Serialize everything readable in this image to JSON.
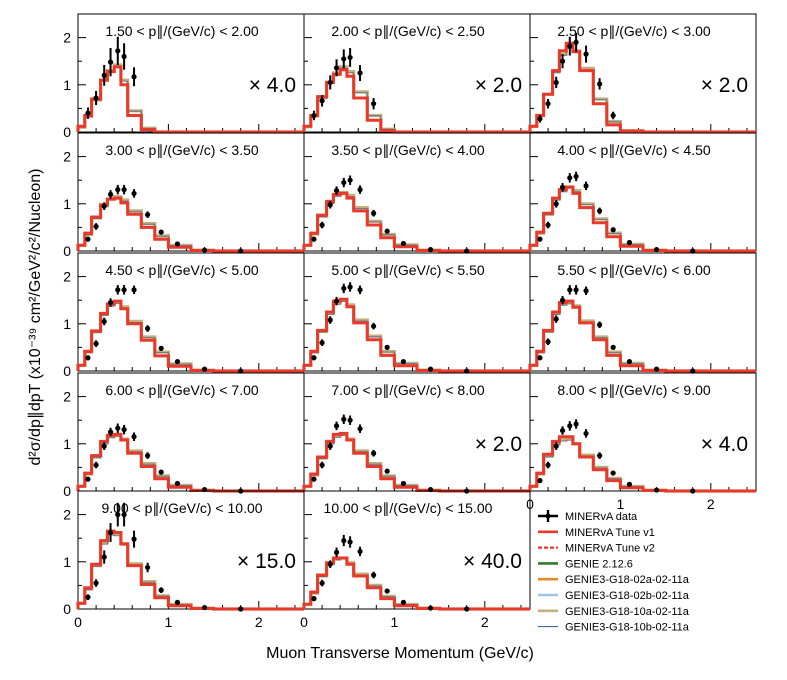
{
  "chart_data": {
    "type": "line",
    "xlabel": "Muon Transverse Momentum (GeV/c)",
    "ylabel": "d²σ/dp∥dpT (x10⁻³⁹ cm²/GeV²/c²/Nucleon)",
    "xlim": [
      0,
      2.5
    ],
    "ylim": [
      0,
      2.5
    ],
    "x_ticks": [
      "0",
      "1",
      "2"
    ],
    "y_ticks": [
      "0",
      "1",
      "2"
    ],
    "grid": false,
    "legend_position": "bottom-right",
    "legend": [
      {
        "label": "MINERvA data",
        "color": "#000000",
        "style": "data"
      },
      {
        "label": "MINERvA Tune v1",
        "color": "#e8392b",
        "style": "solid"
      },
      {
        "label": "MINERvA Tune v2",
        "color": "#e8392b",
        "style": "dashed"
      },
      {
        "label": "GENIE 2.12.6",
        "color": "#2e7d32",
        "style": "solid"
      },
      {
        "label": "GENIE3-G18-02a-02-11a",
        "color": "#e8892b",
        "style": "solid"
      },
      {
        "label": "GENIE3-G18-02b-02-11a",
        "color": "#9ec3e6",
        "style": "solid"
      },
      {
        "label": "GENIE3-G18-10a-02-11a",
        "color": "#c4b07a",
        "style": "solid"
      },
      {
        "label": "GENIE3-G18-10b-02-11a",
        "color": "#2b4f9e",
        "style": "solid"
      }
    ],
    "bins": [
      0,
      0.075,
      0.15,
      0.25,
      0.325,
      0.4,
      0.475,
      0.55,
      0.7,
      0.85,
      1.0,
      1.25,
      1.5,
      2.5
    ],
    "panels": [
      {
        "title": "1.50 < p∥/(GeV/c) < 2.00",
        "scale": "× 4.0",
        "data_x": [
          0.11,
          0.2,
          0.29,
          0.36,
          0.44,
          0.51,
          0.62
        ],
        "data_y": [
          0.4,
          0.72,
          1.2,
          1.48,
          1.72,
          1.6,
          1.17
        ],
        "data_err": [
          0.12,
          0.15,
          0.22,
          0.3,
          0.3,
          0.28,
          0.2
        ],
        "tune_v1": [
          0.12,
          0.35,
          0.7,
          1.1,
          1.28,
          1.38,
          1.0,
          0.35,
          0.05,
          0,
          0,
          0,
          0
        ],
        "genie": [
          0.1,
          0.33,
          0.68,
          1.1,
          1.3,
          1.42,
          1.1,
          0.45,
          0.08,
          0,
          0,
          0,
          0
        ]
      },
      {
        "title": "2.00 < p∥/(GeV/c) < 2.50",
        "scale": "× 2.0",
        "data_x": [
          0.11,
          0.2,
          0.29,
          0.36,
          0.44,
          0.51,
          0.62,
          0.77
        ],
        "data_y": [
          0.35,
          0.66,
          1.05,
          1.36,
          1.55,
          1.58,
          1.25,
          0.6
        ],
        "data_err": [
          0.1,
          0.12,
          0.15,
          0.18,
          0.2,
          0.2,
          0.17,
          0.12
        ],
        "tune_v1": [
          0.12,
          0.35,
          0.75,
          1.05,
          1.22,
          1.32,
          1.18,
          0.72,
          0.25,
          0.03,
          0,
          0,
          0
        ],
        "genie": [
          0.11,
          0.34,
          0.73,
          1.05,
          1.25,
          1.38,
          1.28,
          0.85,
          0.35,
          0.06,
          0,
          0,
          0
        ]
      },
      {
        "title": "2.50 < p∥/(GeV/c) < 3.00",
        "scale": "× 2.0",
        "data_x": [
          0.11,
          0.2,
          0.29,
          0.36,
          0.44,
          0.51,
          0.62,
          0.77,
          0.92
        ],
        "data_y": [
          0.28,
          0.6,
          1.05,
          1.5,
          1.82,
          1.9,
          1.65,
          1.02,
          0.35
        ],
        "data_err": [
          0.08,
          0.1,
          0.12,
          0.15,
          0.2,
          0.2,
          0.18,
          0.12,
          0.08
        ],
        "tune_v1": [
          0.12,
          0.35,
          0.8,
          1.3,
          1.72,
          1.88,
          1.7,
          1.3,
          0.6,
          0.15,
          0.02,
          0,
          0
        ],
        "genie": [
          0.12,
          0.35,
          0.8,
          1.28,
          1.65,
          1.8,
          1.72,
          1.35,
          0.7,
          0.22,
          0.03,
          0,
          0
        ]
      },
      {
        "title": "3.00 < p∥/(GeV/c) < 3.50",
        "scale": "",
        "data_x": [
          0.11,
          0.2,
          0.29,
          0.36,
          0.44,
          0.51,
          0.62,
          0.77,
          0.92,
          1.1,
          1.4,
          1.8
        ],
        "data_y": [
          0.25,
          0.52,
          0.95,
          1.2,
          1.3,
          1.3,
          1.22,
          0.77,
          0.4,
          0.15,
          0.02,
          0.0
        ],
        "data_err": [
          0.05,
          0.07,
          0.08,
          0.09,
          0.1,
          0.1,
          0.09,
          0.07,
          0.05,
          0.03,
          0.01,
          0.01
        ],
        "tune_v1": [
          0.12,
          0.38,
          0.72,
          0.98,
          1.1,
          1.12,
          1.02,
          0.78,
          0.5,
          0.25,
          0.08,
          0.01,
          0
        ],
        "genie": [
          0.12,
          0.35,
          0.7,
          0.96,
          1.1,
          1.15,
          1.08,
          0.85,
          0.58,
          0.32,
          0.12,
          0.02,
          0
        ]
      },
      {
        "title": "3.50 < p∥/(GeV/c) < 4.00",
        "scale": "",
        "data_x": [
          0.11,
          0.2,
          0.29,
          0.36,
          0.44,
          0.51,
          0.62,
          0.77,
          0.92,
          1.1,
          1.4,
          1.8
        ],
        "data_y": [
          0.25,
          0.55,
          0.98,
          1.28,
          1.45,
          1.5,
          1.3,
          0.8,
          0.42,
          0.16,
          0.03,
          0.0
        ],
        "data_err": [
          0.05,
          0.07,
          0.08,
          0.09,
          0.1,
          0.1,
          0.09,
          0.07,
          0.05,
          0.03,
          0.01,
          0.01
        ],
        "tune_v1": [
          0.12,
          0.38,
          0.76,
          1.05,
          1.2,
          1.22,
          1.12,
          0.85,
          0.55,
          0.28,
          0.09,
          0.01,
          0
        ],
        "genie": [
          0.12,
          0.36,
          0.74,
          1.03,
          1.18,
          1.24,
          1.18,
          0.92,
          0.63,
          0.35,
          0.13,
          0.02,
          0
        ]
      },
      {
        "title": "4.00 < p∥/(GeV/c) < 4.50",
        "scale": "",
        "data_x": [
          0.11,
          0.2,
          0.29,
          0.36,
          0.44,
          0.51,
          0.62,
          0.77,
          0.92,
          1.1,
          1.4,
          1.8
        ],
        "data_y": [
          0.25,
          0.55,
          1.0,
          1.35,
          1.55,
          1.58,
          1.38,
          0.85,
          0.45,
          0.18,
          0.03,
          0.0
        ],
        "data_err": [
          0.05,
          0.07,
          0.08,
          0.09,
          0.1,
          0.1,
          0.09,
          0.07,
          0.05,
          0.03,
          0.01,
          0.01
        ],
        "tune_v1": [
          0.12,
          0.4,
          0.8,
          1.12,
          1.3,
          1.35,
          1.22,
          0.92,
          0.6,
          0.3,
          0.1,
          0.01,
          0
        ],
        "genie": [
          0.12,
          0.38,
          0.78,
          1.1,
          1.28,
          1.36,
          1.28,
          1.0,
          0.68,
          0.38,
          0.14,
          0.02,
          0
        ]
      },
      {
        "title": "4.50 < p∥/(GeV/c) < 5.00",
        "scale": "",
        "data_x": [
          0.11,
          0.2,
          0.29,
          0.36,
          0.44,
          0.51,
          0.62,
          0.77,
          0.92,
          1.1,
          1.4,
          1.8
        ],
        "data_y": [
          0.28,
          0.58,
          1.05,
          1.45,
          1.72,
          1.72,
          1.72,
          0.9,
          0.48,
          0.2,
          0.04,
          0.0
        ],
        "data_err": [
          0.05,
          0.07,
          0.08,
          0.09,
          0.1,
          0.1,
          0.09,
          0.07,
          0.05,
          0.03,
          0.01,
          0.01
        ],
        "tune_v1": [
          0.12,
          0.42,
          0.85,
          1.22,
          1.42,
          1.48,
          1.32,
          1.0,
          0.65,
          0.32,
          0.1,
          0.01,
          0
        ],
        "genie": [
          0.12,
          0.4,
          0.83,
          1.2,
          1.4,
          1.46,
          1.36,
          1.05,
          0.72,
          0.4,
          0.15,
          0.02,
          0
        ]
      },
      {
        "title": "5.00 < p∥/(GeV/c) < 5.50",
        "scale": "",
        "data_x": [
          0.11,
          0.2,
          0.29,
          0.36,
          0.44,
          0.51,
          0.62,
          0.77,
          0.92,
          1.1,
          1.4,
          1.8
        ],
        "data_y": [
          0.28,
          0.6,
          1.08,
          1.48,
          1.75,
          1.78,
          1.72,
          0.95,
          0.5,
          0.2,
          0.04,
          0.0
        ],
        "data_err": [
          0.05,
          0.07,
          0.08,
          0.09,
          0.1,
          0.1,
          0.09,
          0.07,
          0.05,
          0.03,
          0.01,
          0.01
        ],
        "tune_v1": [
          0.12,
          0.42,
          0.86,
          1.25,
          1.48,
          1.52,
          1.36,
          1.02,
          0.66,
          0.33,
          0.11,
          0.01,
          0
        ],
        "genie": [
          0.12,
          0.4,
          0.84,
          1.22,
          1.44,
          1.5,
          1.4,
          1.08,
          0.74,
          0.41,
          0.16,
          0.02,
          0
        ]
      },
      {
        "title": "5.50 < p∥/(GeV/c) < 6.00",
        "scale": "",
        "data_x": [
          0.11,
          0.2,
          0.29,
          0.36,
          0.44,
          0.51,
          0.62,
          0.77,
          0.92,
          1.1,
          1.4,
          1.8
        ],
        "data_y": [
          0.28,
          0.62,
          1.1,
          1.5,
          1.72,
          1.72,
          1.7,
          0.98,
          0.5,
          0.2,
          0.04,
          0.0
        ],
        "data_err": [
          0.05,
          0.07,
          0.08,
          0.09,
          0.1,
          0.1,
          0.09,
          0.07,
          0.05,
          0.03,
          0.01,
          0.01
        ],
        "tune_v1": [
          0.12,
          0.42,
          0.86,
          1.25,
          1.45,
          1.48,
          1.35,
          1.02,
          0.66,
          0.33,
          0.11,
          0.01,
          0
        ],
        "genie": [
          0.12,
          0.4,
          0.84,
          1.22,
          1.42,
          1.45,
          1.38,
          1.06,
          0.72,
          0.4,
          0.16,
          0.02,
          0
        ]
      },
      {
        "title": "6.00 < p∥/(GeV/c) < 7.00",
        "scale": "",
        "data_x": [
          0.11,
          0.2,
          0.29,
          0.36,
          0.44,
          0.51,
          0.62,
          0.77,
          0.92,
          1.1,
          1.4,
          1.8
        ],
        "data_y": [
          0.25,
          0.55,
          0.95,
          1.25,
          1.33,
          1.3,
          1.15,
          0.75,
          0.4,
          0.16,
          0.03,
          0.0
        ],
        "data_err": [
          0.05,
          0.07,
          0.08,
          0.09,
          0.1,
          0.1,
          0.09,
          0.07,
          0.05,
          0.03,
          0.01,
          0.01
        ],
        "tune_v1": [
          0.1,
          0.38,
          0.75,
          1.05,
          1.18,
          1.2,
          1.08,
          0.8,
          0.52,
          0.26,
          0.08,
          0.01,
          0
        ],
        "genie": [
          0.1,
          0.36,
          0.72,
          1.02,
          1.15,
          1.18,
          1.1,
          0.85,
          0.58,
          0.32,
          0.12,
          0.02,
          0
        ]
      },
      {
        "title": "7.00 < p∥/(GeV/c) < 8.00",
        "scale": "× 2.0",
        "data_x": [
          0.11,
          0.2,
          0.29,
          0.36,
          0.44,
          0.51,
          0.62,
          0.77,
          0.92,
          1.1,
          1.4,
          1.8
        ],
        "data_y": [
          0.25,
          0.55,
          0.95,
          1.38,
          1.52,
          1.5,
          1.32,
          0.8,
          0.42,
          0.16,
          0.03,
          0.0
        ],
        "data_err": [
          0.05,
          0.07,
          0.08,
          0.09,
          0.1,
          0.1,
          0.09,
          0.07,
          0.05,
          0.03,
          0.01,
          0.01
        ],
        "tune_v1": [
          0.1,
          0.36,
          0.72,
          1.05,
          1.2,
          1.22,
          1.08,
          0.8,
          0.52,
          0.26,
          0.08,
          0.01,
          0
        ],
        "genie": [
          0.1,
          0.34,
          0.7,
          1.02,
          1.16,
          1.2,
          1.1,
          0.85,
          0.58,
          0.32,
          0.12,
          0.02,
          0
        ]
      },
      {
        "title": "8.00 < p∥/(GeV/c) < 9.00",
        "scale": "× 4.0",
        "data_x": [
          0.11,
          0.2,
          0.29,
          0.36,
          0.44,
          0.51,
          0.62,
          0.77,
          0.92,
          1.1,
          1.4,
          1.8
        ],
        "data_y": [
          0.22,
          0.55,
          0.95,
          1.28,
          1.38,
          1.42,
          1.22,
          0.75,
          0.38,
          0.14,
          0.02,
          0.0
        ],
        "data_err": [
          0.05,
          0.07,
          0.08,
          0.09,
          0.1,
          0.1,
          0.09,
          0.07,
          0.05,
          0.03,
          0.01,
          0.01
        ],
        "tune_v1": [
          0.1,
          0.38,
          0.78,
          1.05,
          1.15,
          1.15,
          1.0,
          0.72,
          0.45,
          0.22,
          0.07,
          0.01,
          0
        ],
        "genie": [
          0.1,
          0.36,
          0.74,
          1.0,
          1.08,
          1.1,
          1.0,
          0.76,
          0.5,
          0.27,
          0.1,
          0.02,
          0
        ]
      },
      {
        "title": "9.00 < p∥/(GeV/c) < 10.00",
        "scale": "× 15.0",
        "data_x": [
          0.11,
          0.2,
          0.29,
          0.36,
          0.44,
          0.51,
          0.62,
          0.77,
          0.92,
          1.1,
          1.4,
          1.8
        ],
        "data_y": [
          0.25,
          0.55,
          1.1,
          1.62,
          2.0,
          2.0,
          1.48,
          0.88,
          0.4,
          0.14,
          0.03,
          0.0
        ],
        "data_err": [
          0.06,
          0.08,
          0.14,
          0.2,
          0.25,
          0.25,
          0.18,
          0.1,
          0.06,
          0.03,
          0.01,
          0.01
        ],
        "tune_v1": [
          0.12,
          0.45,
          0.95,
          1.45,
          1.65,
          1.62,
          1.38,
          0.92,
          0.52,
          0.24,
          0.07,
          0.01,
          0
        ],
        "genie": [
          0.12,
          0.42,
          0.92,
          1.4,
          1.6,
          1.58,
          1.38,
          0.96,
          0.58,
          0.28,
          0.1,
          0.02,
          0
        ]
      },
      {
        "title": "10.00 < p∥/(GeV/c) < 15.00",
        "scale": "× 40.0",
        "data_x": [
          0.11,
          0.2,
          0.29,
          0.36,
          0.44,
          0.51,
          0.62,
          0.77,
          0.92,
          1.1,
          1.4,
          1.8
        ],
        "data_y": [
          0.22,
          0.55,
          0.95,
          1.2,
          1.45,
          1.42,
          1.22,
          0.72,
          0.38,
          0.14,
          0.02,
          0.0
        ],
        "data_err": [
          0.05,
          0.07,
          0.08,
          0.1,
          0.12,
          0.12,
          0.1,
          0.07,
          0.05,
          0.03,
          0.01,
          0.01
        ],
        "tune_v1": [
          0.1,
          0.36,
          0.72,
          0.98,
          1.08,
          1.08,
          0.95,
          0.7,
          0.45,
          0.22,
          0.07,
          0.01,
          0
        ],
        "genie": [
          0.1,
          0.34,
          0.7,
          0.96,
          1.06,
          1.08,
          0.98,
          0.74,
          0.5,
          0.27,
          0.1,
          0.02,
          0
        ]
      }
    ]
  }
}
